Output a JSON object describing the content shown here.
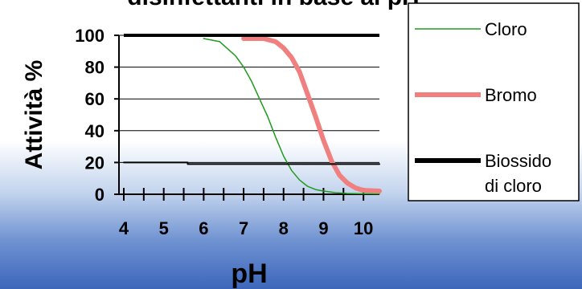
{
  "chart_data": {
    "type": "line",
    "title": "disinfettanti in base al pH",
    "xlabel": "pH",
    "ylabel": "Attività %",
    "xlim": [
      4,
      10.4
    ],
    "ylim": [
      0,
      100
    ],
    "x_ticks": [
      "4",
      "5",
      "6",
      "7",
      "8",
      "9",
      "10"
    ],
    "y_ticks": [
      "0",
      "20",
      "40",
      "60",
      "80",
      "100"
    ],
    "grid": "horizontal",
    "legend_position": "right",
    "series": [
      {
        "name": "Cloro",
        "color": "#1f9a1f",
        "x": [
          6.0,
          6.4,
          6.8,
          7.0,
          7.2,
          7.4,
          7.6,
          7.8,
          8.0,
          8.2,
          8.4,
          8.6,
          8.8,
          9.0,
          9.3,
          9.6,
          10.0,
          10.4
        ],
        "y": [
          98,
          96,
          87,
          80,
          71,
          60,
          49,
          36,
          24,
          15,
          9,
          5,
          3,
          2,
          1,
          0.5,
          0.3,
          0.2
        ]
      },
      {
        "name": "Bromo",
        "color": "#f08080",
        "x": [
          7.0,
          7.5,
          7.8,
          8.0,
          8.2,
          8.4,
          8.6,
          8.8,
          9.0,
          9.2,
          9.4,
          9.6,
          9.8,
          10.0,
          10.4
        ],
        "y": [
          98,
          98,
          96,
          92,
          86,
          77,
          63,
          49,
          34,
          21,
          12,
          7,
          4,
          2.5,
          2
        ]
      },
      {
        "name": "Biossido di cloro",
        "legend_lines": [
          "Biossido",
          "di cloro"
        ],
        "color": "#000000",
        "x": [
          4.0,
          5.6,
          5.6,
          10.4
        ],
        "y": [
          20,
          20,
          19,
          19
        ]
      }
    ],
    "top_line": {
      "color": "#000000",
      "x": [
        4.0,
        10.4
      ],
      "y": [
        100,
        100
      ]
    }
  }
}
